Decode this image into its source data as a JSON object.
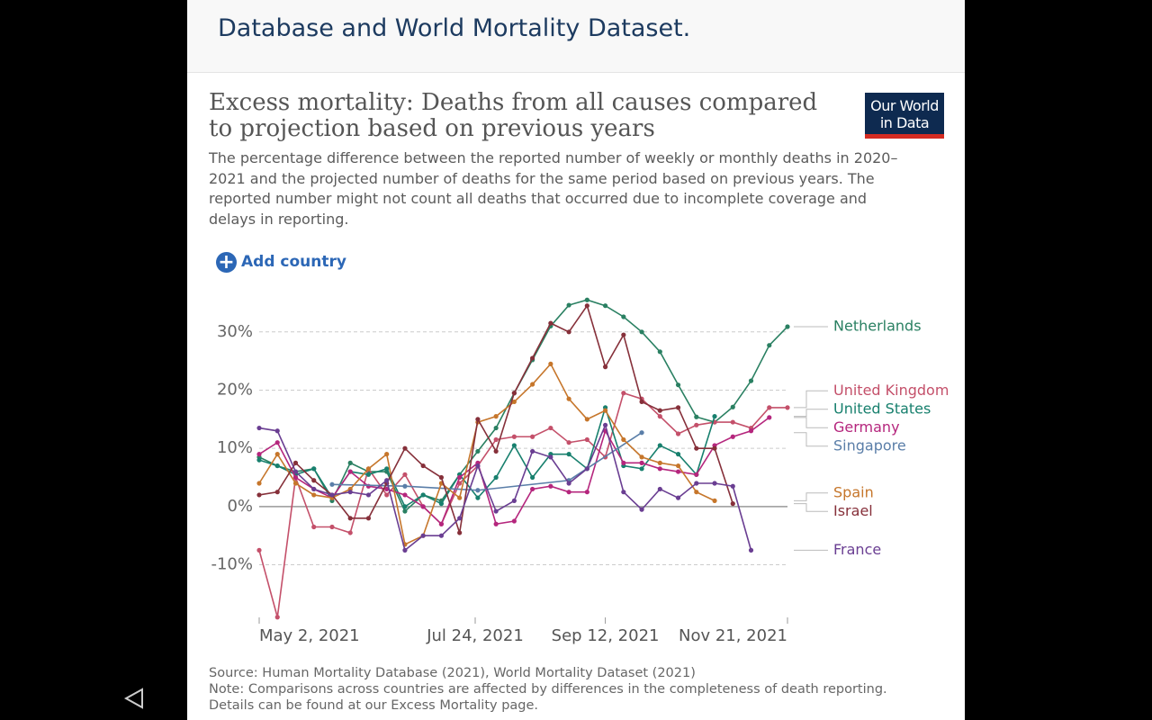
{
  "header": {
    "text": "Database and World Mortality Dataset."
  },
  "logo": {
    "lines": [
      "Our World",
      "in Data"
    ]
  },
  "chart_data": {
    "type": "line",
    "title": "Excess mortality: Deaths from all causes compared to projection based on previous years",
    "subtitle": "The percentage difference between the reported number of weekly or monthly deaths in 2020–2021 and the projected number of deaths for the same period based on previous years. The reported number might not count all deaths that occurred due to incomplete coverage and delays in reporting.",
    "button": "Add country",
    "x": [
      "2021-05-02",
      "2021-05-09",
      "2021-05-16",
      "2021-05-23",
      "2021-05-30",
      "2021-06-06",
      "2021-06-13",
      "2021-06-20",
      "2021-06-27",
      "2021-07-04",
      "2021-07-11",
      "2021-07-18",
      "2021-07-25",
      "2021-08-01",
      "2021-08-08",
      "2021-08-15",
      "2021-08-22",
      "2021-08-29",
      "2021-09-05",
      "2021-09-12",
      "2021-09-19",
      "2021-09-26",
      "2021-10-03",
      "2021-10-10",
      "2021-10-17",
      "2021-10-24",
      "2021-10-31",
      "2021-11-07",
      "2021-11-14",
      "2021-11-21"
    ],
    "xlim": [
      "2021-05-02",
      "2021-11-21"
    ],
    "xticks": [
      {
        "value": "2021-05-02",
        "label": "May 2, 2021"
      },
      {
        "value": "2021-07-24",
        "label": "Jul 24, 2021"
      },
      {
        "value": "2021-09-12",
        "label": "Sep 12, 2021"
      },
      {
        "value": "2021-11-21",
        "label": "Nov 21, 2021"
      }
    ],
    "ylim": [
      -19.5,
      36
    ],
    "yticks": [
      {
        "value": -10,
        "label": "-10%"
      },
      {
        "value": 0,
        "label": "0%"
      },
      {
        "value": 10,
        "label": "10%"
      },
      {
        "value": 20,
        "label": "20%"
      },
      {
        "value": 30,
        "label": "30%"
      }
    ],
    "grid": true,
    "series": [
      {
        "name": "Netherlands",
        "color": "#2a8062",
        "values": [
          8.5,
          7.0,
          6.0,
          6.5,
          1.0,
          7.5,
          6.0,
          6.0,
          -0.8,
          2.0,
          1.0,
          5.5,
          9.5,
          13.5,
          19.5,
          25.2,
          31.0,
          34.6,
          35.5,
          34.5,
          32.6,
          30.0,
          26.6,
          20.9,
          15.4,
          14.5,
          17.1,
          21.6,
          27.7,
          30.9
        ]
      },
      {
        "name": "United Kingdom",
        "color": "#c4506a",
        "values": [
          -7.5,
          -19.0,
          5.0,
          -3.5,
          -3.5,
          -4.5,
          6.5,
          2.0,
          5.5,
          0.0,
          -3.0,
          4.0,
          7.0,
          11.5,
          12.0,
          12.0,
          13.5,
          11.0,
          11.5,
          8.5,
          19.5,
          18.5,
          15.5,
          12.5,
          14.0,
          14.5,
          14.5,
          13.5,
          17.0,
          17.0
        ]
      },
      {
        "name": "United States",
        "color": "#18806e",
        "values": [
          8.0,
          7.0,
          5.5,
          6.5,
          1.5,
          6.0,
          5.5,
          6.5,
          0.0,
          2.0,
          0.5,
          5.5,
          1.5,
          5.0,
          10.5,
          5.0,
          9.0,
          9.0,
          6.5,
          17.0,
          7.0,
          6.5,
          10.5,
          9.0,
          5.5,
          15.5,
          null,
          null,
          null,
          null
        ]
      },
      {
        "name": "Germany",
        "color": "#b5267d",
        "values": [
          9.0,
          11.0,
          5.0,
          3.0,
          1.5,
          6.0,
          3.5,
          3.0,
          2.0,
          0.0,
          -3.0,
          5.0,
          7.5,
          -3.0,
          -2.5,
          3.0,
          3.5,
          2.5,
          2.5,
          13.0,
          7.5,
          7.5,
          6.5,
          6.0,
          5.5,
          10.5,
          12.0,
          13.0,
          15.3,
          null
        ]
      },
      {
        "name": "Singapore",
        "color": "#5a7ea8",
        "x": [
          "2021-05-30",
          "2021-06-27",
          "2021-07-25",
          "2021-08-29",
          "2021-09-26"
        ],
        "values": [
          3.8,
          3.5,
          2.8,
          4.5,
          12.7
        ]
      },
      {
        "name": "Spain",
        "color": "#c6762b",
        "values": [
          4.0,
          9.0,
          4.0,
          2.0,
          1.5,
          3.0,
          6.5,
          9.0,
          -6.5,
          -5.0,
          4.0,
          1.5,
          14.5,
          15.5,
          18.0,
          21.0,
          24.5,
          18.5,
          15.0,
          16.5,
          11.5,
          8.5,
          7.5,
          7.0,
          2.5,
          1.0,
          null,
          null,
          null,
          null
        ]
      },
      {
        "name": "Israel",
        "color": "#86303a",
        "values": [
          2.0,
          2.5,
          7.5,
          4.5,
          2.0,
          -2.0,
          -2.0,
          4.0,
          10.0,
          7.0,
          5.0,
          -4.5,
          15.0,
          9.5,
          19.5,
          25.5,
          31.5,
          30.0,
          34.5,
          24.0,
          29.5,
          18.0,
          16.5,
          17.0,
          10.0,
          10.0,
          0.5,
          null,
          null,
          null
        ]
      },
      {
        "name": "France",
        "color": "#6a3e92",
        "values": [
          13.5,
          13.0,
          6.0,
          3.0,
          2.0,
          2.5,
          2.0,
          4.5,
          -7.5,
          -5.0,
          -5.0,
          -2.0,
          7.0,
          -0.8,
          1.0,
          9.5,
          8.5,
          4.0,
          6.5,
          14.0,
          2.5,
          -0.5,
          3.0,
          1.5,
          4.0,
          4.0,
          3.5,
          -7.5,
          null,
          null
        ]
      }
    ],
    "source": "Source: Human Mortality Database (2021), World Mortality Dataset (2021)",
    "note": "Note: Comparisons across countries are affected by differences in the completeness of death reporting. Details can be found at our Excess Mortality page."
  }
}
